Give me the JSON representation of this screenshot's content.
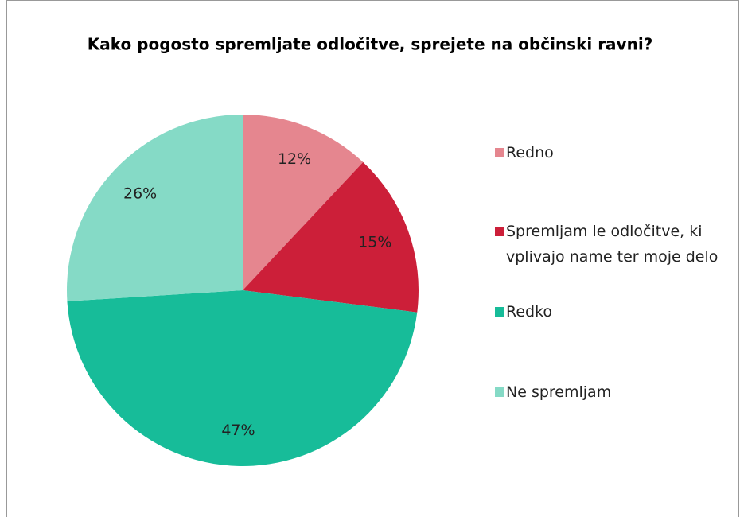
{
  "chart_data": {
    "type": "pie",
    "title": "Kako pogosto spremljate odločitve, sprejete na občinski ravni?",
    "categories": [
      "Redno",
      "Spremljam le odločitve, ki vplivajo name ter moje delo",
      "Redko",
      "Ne spremljam"
    ],
    "values": [
      12,
      15,
      47,
      26
    ],
    "value_labels": [
      "12%",
      "15%",
      "47%",
      "26%"
    ],
    "colors": [
      "#e5868f",
      "#cc1f39",
      "#17bc99",
      "#85dac6"
    ],
    "legend": "right"
  }
}
